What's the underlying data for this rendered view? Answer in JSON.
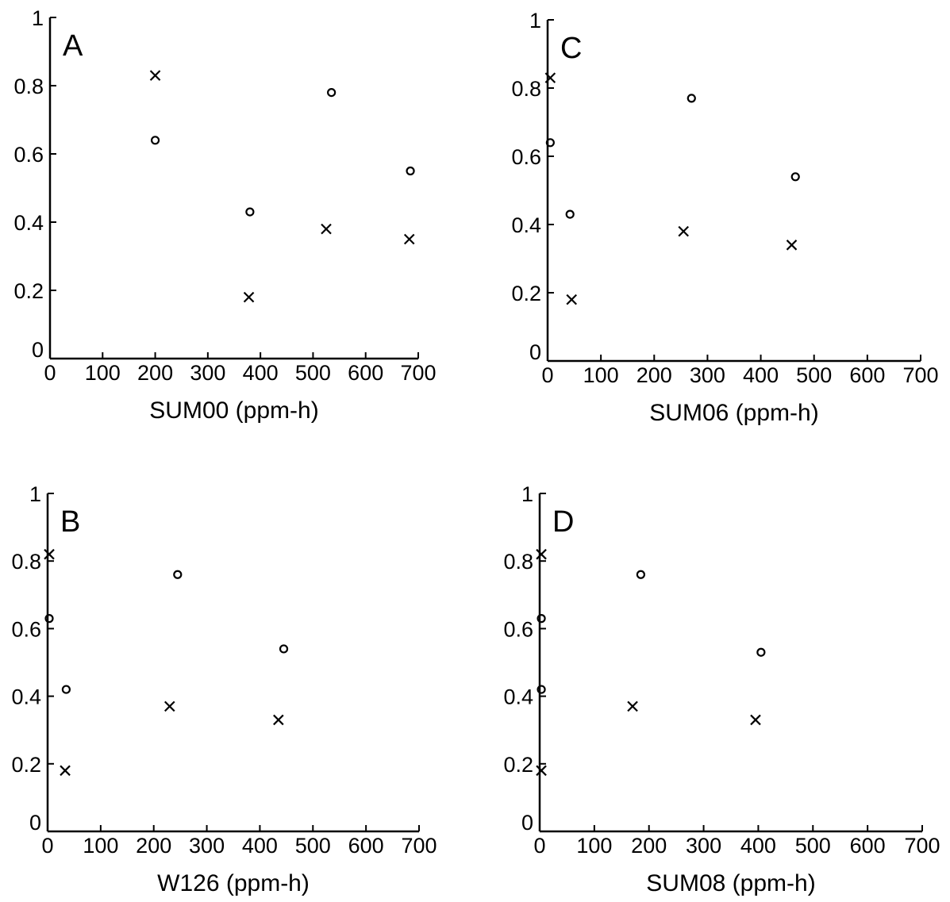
{
  "chart_data": [
    {
      "panel": "A",
      "type": "scatter",
      "xlabel": "SUM00 (ppm-h)",
      "ylabel": "",
      "xlim": [
        0,
        700
      ],
      "ylim": [
        0,
        1
      ],
      "xticks": [
        "0",
        "100",
        "200",
        "300",
        "400",
        "500",
        "600",
        "700"
      ],
      "yticks": [
        "0",
        "0.2",
        "0.4",
        "0.6",
        "0.8",
        "1"
      ],
      "series": [
        {
          "marker": "o",
          "points": [
            [
              200,
              0.64
            ],
            [
              380,
              0.43
            ],
            [
              535,
              0.78
            ],
            [
              685,
              0.55
            ]
          ]
        },
        {
          "marker": "x",
          "points": [
            [
              200,
              0.83
            ],
            [
              378,
              0.18
            ],
            [
              525,
              0.38
            ],
            [
              683,
              0.35
            ]
          ]
        }
      ]
    },
    {
      "panel": "B",
      "type": "scatter",
      "xlabel": "W126 (ppm-h)",
      "ylabel": "",
      "xlim": [
        0,
        700
      ],
      "ylim": [
        0,
        1
      ],
      "xticks": [
        "0",
        "100",
        "200",
        "300",
        "400",
        "500",
        "600",
        "700"
      ],
      "yticks": [
        "0",
        "0.2",
        "0.4",
        "0.6",
        "0.8",
        "1"
      ],
      "series": [
        {
          "marker": "o",
          "points": [
            [
              3,
              0.63
            ],
            [
              35,
              0.42
            ],
            [
              245,
              0.76
            ],
            [
              445,
              0.54
            ]
          ]
        },
        {
          "marker": "x",
          "points": [
            [
              3,
              0.82
            ],
            [
              33,
              0.18
            ],
            [
              230,
              0.37
            ],
            [
              435,
              0.33
            ]
          ]
        }
      ]
    },
    {
      "panel": "C",
      "type": "scatter",
      "xlabel": "SUM06 (ppm-h)",
      "ylabel": "",
      "xlim": [
        0,
        700
      ],
      "ylim": [
        0,
        1
      ],
      "xticks": [
        "0",
        "100",
        "200",
        "300",
        "400",
        "500",
        "600",
        "700"
      ],
      "yticks": [
        "0",
        "0.2",
        "0.4",
        "0.6",
        "0.8",
        "1"
      ],
      "series": [
        {
          "marker": "o",
          "points": [
            [
              5,
              0.64
            ],
            [
              42,
              0.43
            ],
            [
              270,
              0.77
            ],
            [
              465,
              0.54
            ]
          ]
        },
        {
          "marker": "x",
          "points": [
            [
              5,
              0.83
            ],
            [
              45,
              0.18
            ],
            [
              255,
              0.38
            ],
            [
              458,
              0.34
            ]
          ]
        }
      ]
    },
    {
      "panel": "D",
      "type": "scatter",
      "xlabel": "SUM08 (ppm-h)",
      "ylabel": "",
      "xlim": [
        0,
        700
      ],
      "ylim": [
        0,
        1
      ],
      "xticks": [
        "0",
        "100",
        "200",
        "300",
        "400",
        "500",
        "600",
        "700"
      ],
      "yticks": [
        "0",
        "0.2",
        "0.4",
        "0.6",
        "0.8",
        "1"
      ],
      "series": [
        {
          "marker": "o",
          "points": [
            [
              3,
              0.63
            ],
            [
              3,
              0.42
            ],
            [
              185,
              0.76
            ],
            [
              405,
              0.53
            ]
          ]
        },
        {
          "marker": "x",
          "points": [
            [
              3,
              0.82
            ],
            [
              3,
              0.18
            ],
            [
              170,
              0.37
            ],
            [
              395,
              0.33
            ]
          ]
        }
      ]
    }
  ]
}
